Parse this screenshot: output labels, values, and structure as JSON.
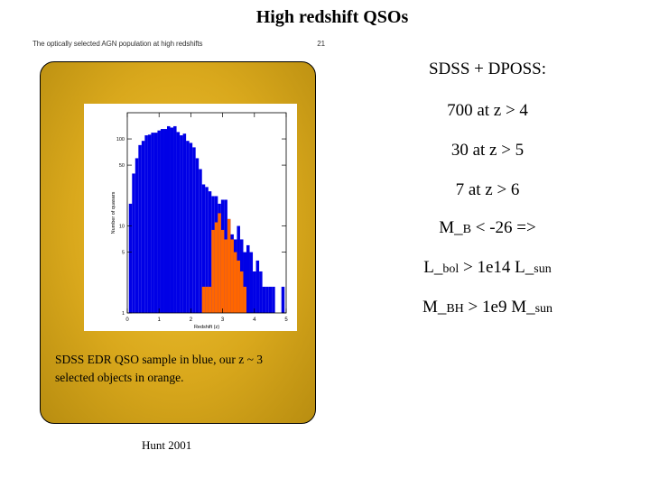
{
  "slide": {
    "title": "High redshift QSOs",
    "header_text": "The optically selected AGN population at high redshifts",
    "header_page": "21",
    "caption_line1": "SDSS EDR QSO sample in blue, our z ~ 3",
    "caption_line2": "selected objects in orange.",
    "credit": "Hunt 2001"
  },
  "facts": {
    "line1": "SDSS + DPOSS:",
    "line2": "700 at z > 4",
    "line3": "30 at z > 5",
    "line4": "7 at z > 6",
    "line5_main": "M_",
    "line5_sub": "B",
    "line5_rest": " < -26 =>",
    "line6_main": "L_",
    "line6_sub": "bol",
    "line6_rest": " > 1e14 L_",
    "line6_sub2": "sun",
    "line7_main": "M_",
    "line7_sub": "BH",
    "line7_rest": " > 1e9 M_",
    "line7_sub2": "sun"
  },
  "colors": {
    "blue": "#0000e6",
    "orange": "#ff6600"
  },
  "chart_data": {
    "type": "bar",
    "title": "",
    "xlabel": "Redshift (z)",
    "ylabel": "Number of quasars",
    "xlim": [
      0,
      5
    ],
    "ylim": [
      1,
      200
    ],
    "yscale": "log",
    "xticks": [
      "0",
      "1",
      "2",
      "3",
      "4",
      "5"
    ],
    "yticks": [
      "1",
      "5",
      "10",
      "50",
      "100"
    ],
    "bin_width": 0.1,
    "series": [
      {
        "name": "SDSS EDR QSOs",
        "color": "#0000e6",
        "x": [
          0.1,
          0.2,
          0.3,
          0.4,
          0.5,
          0.6,
          0.7,
          0.8,
          0.9,
          1.0,
          1.1,
          1.2,
          1.3,
          1.4,
          1.5,
          1.6,
          1.7,
          1.8,
          1.9,
          2.0,
          2.1,
          2.2,
          2.3,
          2.4,
          2.5,
          2.6,
          2.7,
          2.8,
          2.9,
          3.0,
          3.1,
          3.2,
          3.3,
          3.4,
          3.5,
          3.6,
          3.7,
          3.8,
          3.9,
          4.0,
          4.1,
          4.2,
          4.3,
          4.4,
          4.5,
          4.6,
          4.7,
          4.8,
          4.9
        ],
        "values": [
          18,
          40,
          60,
          85,
          95,
          110,
          112,
          118,
          118,
          125,
          130,
          130,
          140,
          135,
          140,
          120,
          110,
          115,
          95,
          90,
          80,
          60,
          45,
          30,
          28,
          25,
          22,
          22,
          18,
          20,
          20,
          12,
          8,
          7,
          10,
          7,
          5,
          6,
          5,
          3,
          4,
          3,
          2,
          2,
          2,
          2,
          1,
          1,
          2
        ]
      },
      {
        "name": "Our z~3 selected objects",
        "color": "#ff6600",
        "x": [
          2.4,
          2.5,
          2.6,
          2.7,
          2.8,
          2.9,
          3.0,
          3.1,
          3.2,
          3.3,
          3.4,
          3.5,
          3.6,
          3.7
        ],
        "values": [
          2,
          2,
          2,
          9,
          11,
          14,
          9,
          7,
          12,
          7,
          5,
          4,
          3,
          2
        ]
      }
    ]
  }
}
